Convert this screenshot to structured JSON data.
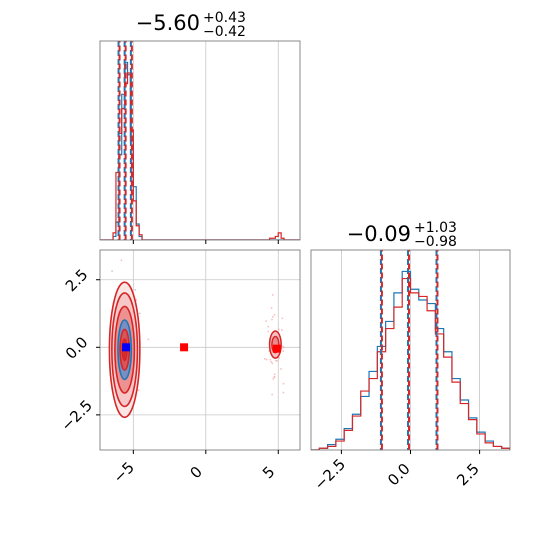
{
  "chart_data": {
    "type": "corner",
    "colors": {
      "series_a": "#1f77b4",
      "series_b": "#d62728",
      "truth": "#0000ff",
      "points": "#ff0000"
    },
    "panels": [
      {
        "id": "hist-x",
        "type": "histogram",
        "title": {
          "median": "−5.60",
          "plus": "+0.43",
          "minus": "−0.42"
        },
        "xlim": [
          -7.3,
          6.5
        ],
        "xticks": [
          -5,
          0,
          5
        ],
        "tick_labels_shown": false,
        "quantiles": [
          -6.02,
          -5.6,
          -5.17
        ],
        "series": [
          {
            "name": "",
            "color": "#1f77b4",
            "edges": [
              -7.3,
              -6.4,
              -6.2,
              -6.0,
              -5.8,
              -5.6,
              -5.4,
              -5.2,
              -5.0,
              -4.8,
              -4.6,
              -4.4,
              -4.2,
              6.5
            ],
            "counts": [
              0,
              2,
              10,
              48,
              82,
              100,
              93,
              56,
              30,
              9,
              2,
              0,
              0
            ]
          },
          {
            "name": "",
            "color": "#d62728",
            "edges": [
              -7.3,
              -6.4,
              -6.2,
              -6.0,
              -5.8,
              -5.6,
              -5.4,
              -5.2,
              -5.0,
              -4.8,
              -4.6,
              -4.4,
              4.4,
              4.8,
              5.0,
              5.2,
              5.4,
              6.5
            ],
            "counts": [
              0,
              4,
              38,
              60,
              74,
              88,
              94,
              62,
              22,
              8,
              3,
              0,
              1,
              2,
              4,
              1,
              0
            ]
          }
        ]
      },
      {
        "id": "scatter-xy",
        "type": "2d-density",
        "xlim": [
          -7.3,
          6.5
        ],
        "ylim": [
          -3.8,
          3.6
        ],
        "xticks": [
          -5,
          0,
          5
        ],
        "xtick_labels": [
          "−5",
          "0",
          "5"
        ],
        "yticks": [
          -2.5,
          0,
          2.5
        ],
        "ytick_labels": [
          "−2.5",
          "0.0",
          "2.5"
        ],
        "truth": {
          "x": -5.5,
          "y": 0.0
        },
        "markers": [
          {
            "x": -1.5,
            "y": 0.0
          },
          {
            "x": 4.9,
            "y": -0.05
          }
        ],
        "blob_primary": {
          "cx": -5.6,
          "cy": -0.09,
          "sx": 0.42,
          "sy": 1.0
        },
        "blob_secondary": {
          "cx": 4.8,
          "cy": 0.1,
          "sx": 0.2,
          "sy": 0.25
        }
      },
      {
        "id": "hist-y",
        "type": "histogram",
        "title": {
          "median": "−0.09",
          "plus": "+1.03",
          "minus": "−0.98"
        },
        "xlim": [
          -3.6,
          3.6
        ],
        "xticks": [
          -2.5,
          0,
          2.5
        ],
        "xtick_labels": [
          "−2.5",
          "0.0",
          "2.5"
        ],
        "quantiles": [
          -1.07,
          -0.09,
          0.94
        ],
        "series": [
          {
            "name": "",
            "color": "#1f77b4",
            "edges": [
              -3.6,
              -3.3,
              -3.0,
              -2.7,
              -2.4,
              -2.1,
              -1.8,
              -1.5,
              -1.2,
              -0.9,
              -0.6,
              -0.3,
              0.0,
              0.3,
              0.6,
              0.9,
              1.2,
              1.5,
              1.8,
              2.1,
              2.4,
              2.7,
              3.0,
              3.3,
              3.6
            ],
            "counts": [
              0,
              1,
              3,
              6,
              12,
              20,
              30,
              44,
              58,
              72,
              88,
              100,
              90,
              84,
              82,
              68,
              55,
              40,
              28,
              18,
              10,
              5,
              2,
              1
            ]
          },
          {
            "name": "",
            "color": "#d62728",
            "edges": [
              -3.6,
              -3.3,
              -3.0,
              -2.7,
              -2.4,
              -2.1,
              -1.8,
              -1.5,
              -1.2,
              -0.9,
              -0.6,
              -0.3,
              0.0,
              0.3,
              0.6,
              0.9,
              1.2,
              1.5,
              1.8,
              2.1,
              2.4,
              2.7,
              3.0,
              3.3,
              3.6
            ],
            "counts": [
              0,
              1,
              2,
              5,
              11,
              19,
              33,
              40,
              55,
              68,
              80,
              96,
              88,
              86,
              78,
              65,
              52,
              38,
              26,
              17,
              9,
              4,
              2,
              1
            ]
          }
        ]
      }
    ]
  }
}
